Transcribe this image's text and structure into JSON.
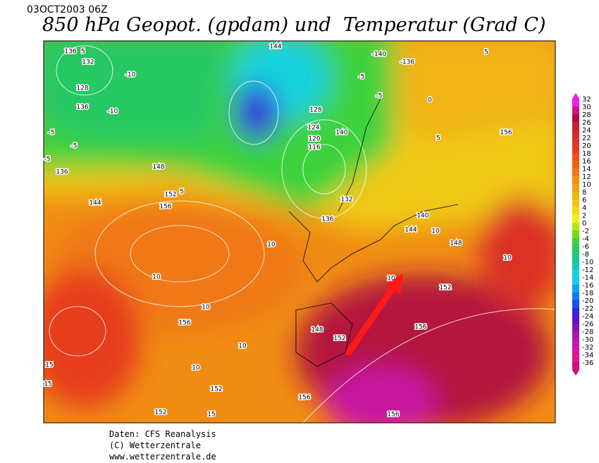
{
  "header": {
    "date": "03OCT2003 06Z",
    "title": "850 hPa Geopot. (gpdam) und  Temperatur (Grad C)"
  },
  "colorbar": {
    "labels": [
      "32",
      "30",
      "28",
      "26",
      "24",
      "22",
      "20",
      "18",
      "16",
      "14",
      "12",
      "10",
      "8",
      "6",
      "4",
      "2",
      "0",
      "-2",
      "-4",
      "-6",
      "-8",
      "-10",
      "-12",
      "-14",
      "-16",
      "-18",
      "-20",
      "-22",
      "-24",
      "-26",
      "-28",
      "-30",
      "-32",
      "-34",
      "-36"
    ],
    "colors": [
      "#f01ee6",
      "#d2148c",
      "#a8143c",
      "#c81e3c",
      "#d22832",
      "#dc3228",
      "#e63c1e",
      "#eb5019",
      "#f06414",
      "#f07814",
      "#f08c14",
      "#f0a014",
      "#f0b414",
      "#f0c814",
      "#f0dc14",
      "#f0f014",
      "#b4e614",
      "#78dc14",
      "#3cd23c",
      "#28c864",
      "#1ec88c",
      "#14c8b4",
      "#14d2dc",
      "#14c8f0",
      "#14a0f0",
      "#1478f0",
      "#1450f0",
      "#3228dc",
      "#5a14c8",
      "#8214b4",
      "#aa14b4",
      "#c814b4",
      "#dc14a0",
      "#e6148c",
      "#c8147a"
    ]
  },
  "map": {
    "labels": [
      "136",
      "5",
      "132",
      "-10",
      "128",
      "136",
      "-10",
      "-5",
      "-5",
      "-5",
      "136",
      "144",
      "148",
      "152",
      "5",
      "156",
      "10",
      "10",
      "10",
      "156",
      "10",
      "10",
      "152",
      "15",
      "15",
      "152",
      "15",
      "140",
      "124",
      "120",
      "116",
      "132",
      "136",
      "140",
      "144",
      "10",
      "148",
      "10",
      "152",
      "156",
      "-5",
      "-140",
      "-136",
      "5",
      "156",
      "5",
      "0",
      "-5",
      "144",
      "128",
      "10",
      "148",
      "152",
      "156",
      "156"
    ]
  },
  "footer": {
    "lines": [
      "Daten: CFS Reanalysis",
      "(C) Wetterzentrale",
      "www.wetterzentrale.de"
    ]
  }
}
